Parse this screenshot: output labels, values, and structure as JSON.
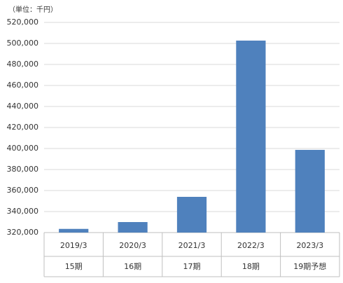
{
  "chart_data": {
    "type": "bar",
    "unit_label": "（単位：千円）",
    "categories": [
      "2019/3",
      "2020/3",
      "2021/3",
      "2022/3",
      "2023/3"
    ],
    "periods": [
      "15期",
      "16期",
      "17期",
      "18期",
      "19期予想"
    ],
    "values": [
      323500,
      330000,
      354000,
      502700,
      398700
    ],
    "color": "#4f81bd",
    "ylim": [
      320000,
      520000
    ],
    "yticks": [
      {
        "value": 320000,
        "label": "320,000"
      },
      {
        "value": 340000,
        "label": "340,000"
      },
      {
        "value": 360000,
        "label": "360,000"
      },
      {
        "value": 380000,
        "label": "380,000"
      },
      {
        "value": 400000,
        "label": "400,000"
      },
      {
        "value": 420000,
        "label": "420,000"
      },
      {
        "value": 440000,
        "label": "440,000"
      },
      {
        "value": 460000,
        "label": "460,000"
      },
      {
        "value": 480000,
        "label": "480,000"
      },
      {
        "value": 500000,
        "label": "500,000"
      },
      {
        "value": 520000,
        "label": "520,000"
      }
    ],
    "grid": true
  }
}
